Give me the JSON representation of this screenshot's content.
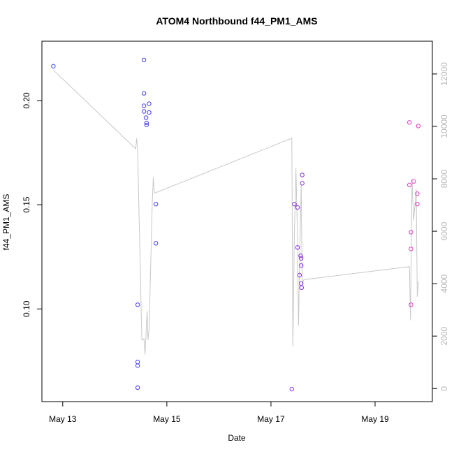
{
  "chart_data": {
    "type": "scatter",
    "title": "ATOM4 Northbound f44_PM1_AMS",
    "xlabel": "Date",
    "ylabel": "f44_PM1_AMS",
    "x_unit": "days in May",
    "xlim": [
      12.6,
      20.1
    ],
    "ylim": [
      0.0555,
      0.2285
    ],
    "x_ticks": [
      {
        "value": 13,
        "label": "May 13"
      },
      {
        "value": 15,
        "label": "May 15"
      },
      {
        "value": 17,
        "label": "May 17"
      },
      {
        "value": 19,
        "label": "May 19"
      }
    ],
    "y_ticks": [
      {
        "value": 0.1,
        "label": "0.10"
      },
      {
        "value": 0.15,
        "label": "0.15"
      },
      {
        "value": 0.2,
        "label": "0.20"
      }
    ],
    "y2_lim": [
      -500,
      13250
    ],
    "y2_ticks": [
      {
        "value": 0,
        "label": "0"
      },
      {
        "value": 2000,
        "label": "2000"
      },
      {
        "value": 4000,
        "label": "4000"
      },
      {
        "value": 6000,
        "label": "6000"
      },
      {
        "value": 8000,
        "label": "8000"
      },
      {
        "value": 10000,
        "label": "10000"
      },
      {
        "value": 12000,
        "label": "12000"
      }
    ],
    "points": [
      {
        "x": 12.82,
        "y": 0.2165,
        "color": "#3a4df0"
      },
      {
        "x": 14.44,
        "y": 0.102,
        "color": "#4a3ef0"
      },
      {
        "x": 14.44,
        "y": 0.0745,
        "color": "#4a3ef0"
      },
      {
        "x": 14.44,
        "y": 0.0728,
        "color": "#4a3ef0"
      },
      {
        "x": 14.44,
        "y": 0.0622,
        "color": "#4a3ef0"
      },
      {
        "x": 14.56,
        "y": 0.2195,
        "color": "#4a3ef0"
      },
      {
        "x": 14.56,
        "y": 0.2035,
        "color": "#4a3ef0"
      },
      {
        "x": 14.56,
        "y": 0.1975,
        "color": "#4a3ef0"
      },
      {
        "x": 14.56,
        "y": 0.1948,
        "color": "#4a3ef0"
      },
      {
        "x": 14.6,
        "y": 0.1918,
        "color": "#4a3ef0"
      },
      {
        "x": 14.61,
        "y": 0.1893,
        "color": "#4a3ef0"
      },
      {
        "x": 14.61,
        "y": 0.1883,
        "color": "#4a3ef0"
      },
      {
        "x": 14.66,
        "y": 0.1985,
        "color": "#4a3ef0"
      },
      {
        "x": 14.66,
        "y": 0.1943,
        "color": "#4a3ef0"
      },
      {
        "x": 14.79,
        "y": 0.1503,
        "color": "#4a3ef0"
      },
      {
        "x": 14.79,
        "y": 0.1315,
        "color": "#4a3ef0"
      },
      {
        "x": 17.4,
        "y": 0.0615,
        "color": "#8a33dd"
      },
      {
        "x": 17.45,
        "y": 0.1503,
        "color": "#8a33dd"
      },
      {
        "x": 17.51,
        "y": 0.1487,
        "color": "#8a33dd"
      },
      {
        "x": 17.51,
        "y": 0.1295,
        "color": "#8a33dd"
      },
      {
        "x": 17.55,
        "y": 0.1162,
        "color": "#8a33dd"
      },
      {
        "x": 17.57,
        "y": 0.1255,
        "color": "#8a33dd"
      },
      {
        "x": 17.58,
        "y": 0.1243,
        "color": "#8a33dd"
      },
      {
        "x": 17.58,
        "y": 0.1208,
        "color": "#8a33dd"
      },
      {
        "x": 17.58,
        "y": 0.1122,
        "color": "#8a33dd"
      },
      {
        "x": 17.59,
        "y": 0.1102,
        "color": "#8a33dd"
      },
      {
        "x": 17.6,
        "y": 0.1643,
        "color": "#8a33dd"
      },
      {
        "x": 17.6,
        "y": 0.1603,
        "color": "#8a33dd"
      },
      {
        "x": 19.66,
        "y": 0.1895,
        "color": "#e23dc2"
      },
      {
        "x": 19.66,
        "y": 0.1595,
        "color": "#e23dc2"
      },
      {
        "x": 19.69,
        "y": 0.1368,
        "color": "#e23dc2"
      },
      {
        "x": 19.69,
        "y": 0.1288,
        "color": "#e23dc2"
      },
      {
        "x": 19.69,
        "y": 0.102,
        "color": "#e23dc2"
      },
      {
        "x": 19.74,
        "y": 0.1612,
        "color": "#e23dc2"
      },
      {
        "x": 19.81,
        "y": 0.1553,
        "color": "#e23dc2"
      },
      {
        "x": 19.81,
        "y": 0.1503,
        "color": "#e23dc2"
      },
      {
        "x": 19.83,
        "y": 0.1878,
        "color": "#e23dc2"
      }
    ],
    "line": {
      "axis": "right",
      "color": "#c8c8c8",
      "points": [
        [
          12.82,
          12150
        ],
        [
          14.4,
          9150
        ],
        [
          14.42,
          9550
        ],
        [
          14.44,
          9050
        ],
        [
          14.52,
          1850
        ],
        [
          14.56,
          1900
        ],
        [
          14.58,
          1300
        ],
        [
          14.6,
          2050
        ],
        [
          14.62,
          2950
        ],
        [
          14.64,
          1850
        ],
        [
          14.66,
          2300
        ],
        [
          14.72,
          7100
        ],
        [
          14.74,
          8050
        ],
        [
          14.76,
          7450
        ],
        [
          17.4,
          9550
        ],
        [
          17.42,
          1600
        ],
        [
          17.45,
          5900
        ],
        [
          17.48,
          8400
        ],
        [
          17.51,
          5700
        ],
        [
          17.53,
          2400
        ],
        [
          17.55,
          4600
        ],
        [
          17.58,
          7800
        ],
        [
          17.6,
          3950
        ],
        [
          17.63,
          4150
        ],
        [
          19.66,
          4650
        ],
        [
          19.68,
          2600
        ],
        [
          19.71,
          8000
        ],
        [
          19.74,
          6400
        ],
        [
          19.79,
          7600
        ],
        [
          19.81,
          3500
        ],
        [
          19.83,
          4100
        ]
      ]
    }
  }
}
